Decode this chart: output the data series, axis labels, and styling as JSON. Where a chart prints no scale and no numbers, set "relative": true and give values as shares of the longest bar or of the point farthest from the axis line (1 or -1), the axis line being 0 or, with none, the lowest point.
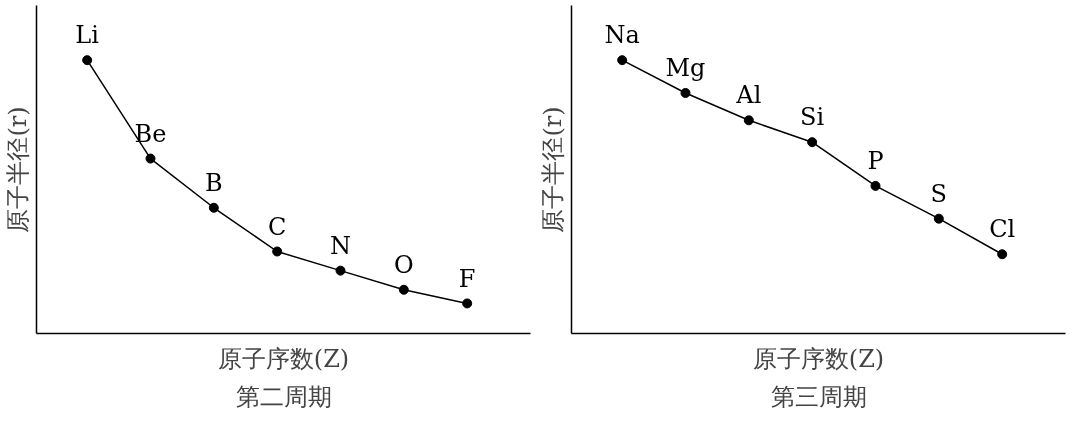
{
  "chart_data": [
    {
      "type": "line",
      "title": "第二周期",
      "xlabel": "原子序数(Z)",
      "ylabel": "原子半径(r)",
      "relative": true,
      "marker": "circle",
      "categories": [
        null,
        null,
        null,
        null,
        null,
        null,
        null
      ],
      "series": [
        {
          "color": "#000000",
          "values": [
            1,
            0.64,
            0.46,
            0.3,
            0.23,
            0.16,
            0.11
          ]
        }
      ],
      "annotations": [
        "Li",
        "Be",
        "B",
        "C",
        "N",
        "O",
        "F"
      ]
    },
    {
      "type": "line",
      "title": "第三周期",
      "xlabel": "原子序数(Z)",
      "ylabel": "原子半径(r)",
      "relative": true,
      "marker": "circle",
      "categories": [
        null,
        null,
        null,
        null,
        null,
        null,
        null
      ],
      "series": [
        {
          "color": "#000000",
          "values": [
            1,
            0.88,
            0.78,
            0.7,
            0.54,
            0.42,
            0.29
          ]
        }
      ],
      "annotations": [
        "Na",
        "Mg",
        "Al",
        "Si",
        "P",
        "S",
        "Cl"
      ]
    }
  ]
}
